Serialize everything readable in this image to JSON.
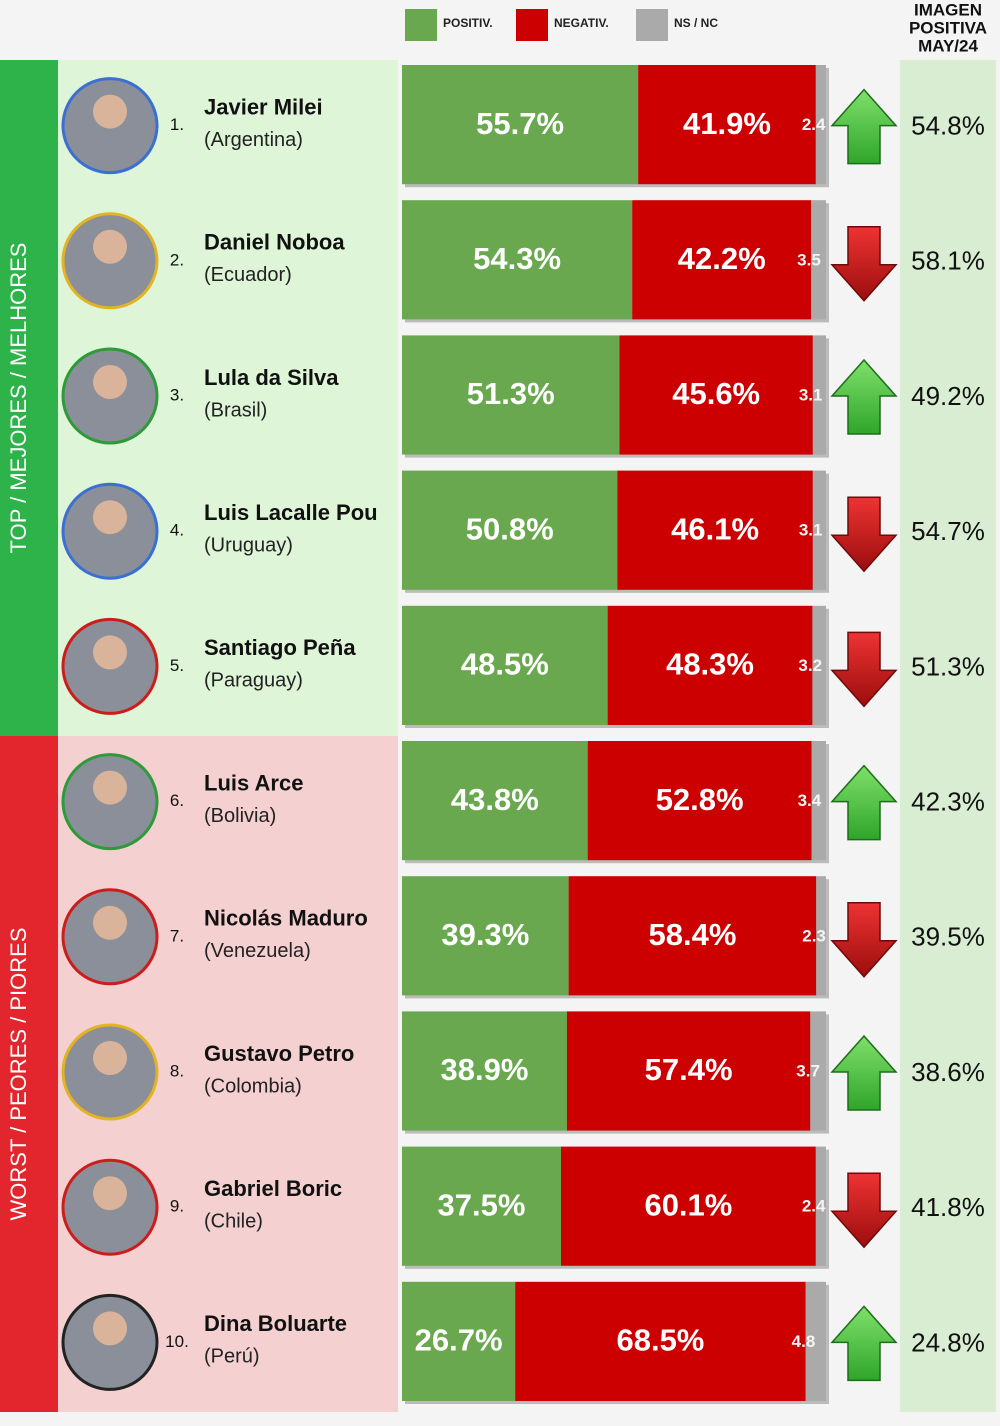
{
  "chart_data": {
    "type": "stacked_hbar",
    "categories": [
      "Javier Milei",
      "Daniel Noboa",
      "Lula da Silva",
      "Luis Lacalle Pou",
      "Santiago Peña",
      "Luis Arce",
      "Nicolás Maduro",
      "Gustavo Petro",
      "Gabriel Boric",
      "Dina Boluarte"
    ],
    "ranks": [
      "1.",
      "2.",
      "3.",
      "4.",
      "5.",
      "6.",
      "7.",
      "8.",
      "9.",
      "10."
    ],
    "countries": [
      "(Argentina)",
      "(Ecuador)",
      "(Brasil)",
      "(Uruguay)",
      "(Paraguay)",
      "(Bolivia)",
      "(Venezuela)",
      "(Colombia)",
      "(Chile)",
      "(Perú)"
    ],
    "groups": [
      {
        "label": "TOP / MEJORES / MELHORES",
        "color": "#2db34a",
        "background": "#dff5d8",
        "size": 5
      },
      {
        "label": "WORST / PEORES / PIORES",
        "color": "#e3262d",
        "background": "#f4d0d0",
        "size": 5
      }
    ],
    "xlim": [
      0,
      100
    ],
    "series": [
      {
        "name": "POSITIV.",
        "color": "#6aa84f",
        "values": [
          55.7,
          54.3,
          51.3,
          50.8,
          48.5,
          43.8,
          39.3,
          38.9,
          37.5,
          26.7
        ],
        "value_labels": [
          "55.7%",
          "54.3%",
          "51.3%",
          "50.8%",
          "48.5%",
          "43.8%",
          "39.3%",
          "38.9%",
          "37.5%",
          "26.7%"
        ]
      },
      {
        "name": "NEGATIV.",
        "color": "#cc0000",
        "values": [
          41.9,
          42.2,
          45.6,
          46.1,
          48.3,
          52.8,
          58.4,
          57.4,
          60.1,
          68.5
        ],
        "value_labels": [
          "41.9%",
          "42.2%",
          "45.6%",
          "46.1%",
          "48.3%",
          "52.8%",
          "58.4%",
          "57.4%",
          "60.1%",
          "68.5%"
        ]
      },
      {
        "name": "NS / NC",
        "color": "#aaaaaa",
        "values": [
          2.4,
          3.5,
          3.1,
          3.1,
          3.2,
          3.4,
          2.3,
          3.7,
          2.4,
          4.8
        ]
      }
    ],
    "previous": {
      "title": [
        "IMAGEN",
        "POSITIVA",
        "MAY/24"
      ],
      "values": [
        54.8,
        58.1,
        49.2,
        54.7,
        51.3,
        42.3,
        39.5,
        38.6,
        41.8,
        24.8
      ],
      "value_labels": [
        "54.8%",
        "58.1%",
        "49.2%",
        "54.7%",
        "51.3%",
        "42.3%",
        "39.5%",
        "38.6%",
        "41.8%",
        "24.8%"
      ]
    }
  }
}
